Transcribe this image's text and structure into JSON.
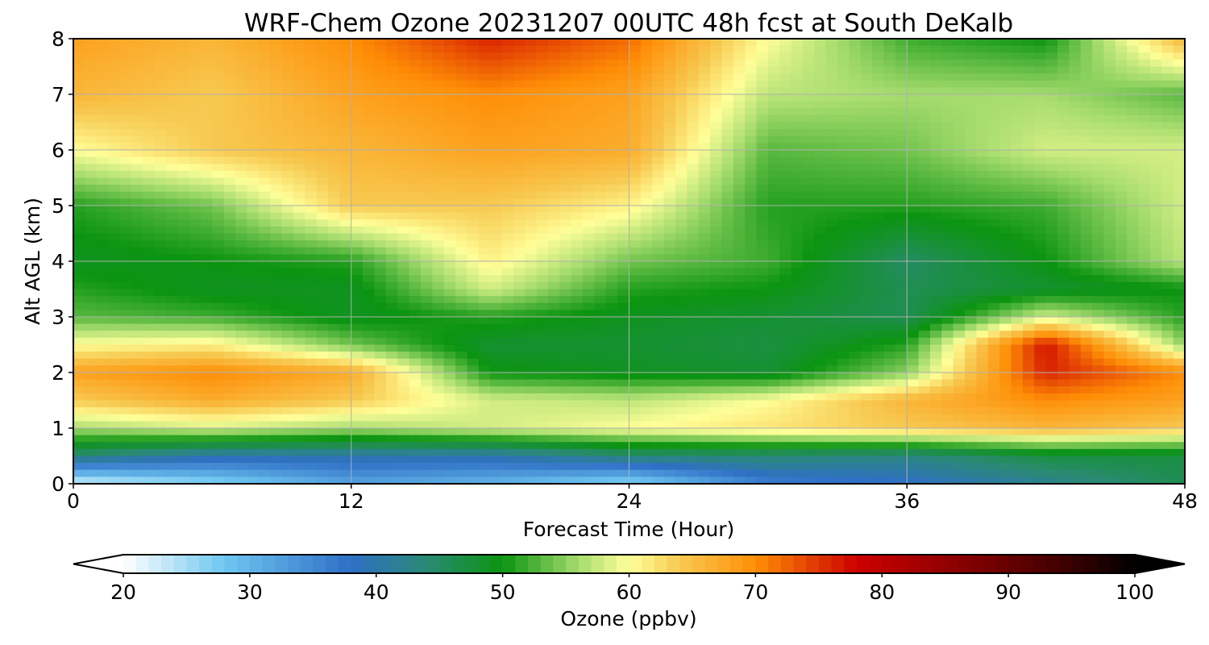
{
  "chart_data": {
    "type": "heatmap",
    "title": "WRF-Chem Ozone  20231207 00UTC 48h fcst at South DeKalb",
    "xlabel": "Forecast Time (Hour)",
    "ylabel": "Alt AGL (km)",
    "xlim": [
      0,
      48
    ],
    "ylim": [
      0,
      8
    ],
    "xticks": [
      0,
      12,
      24,
      36,
      48
    ],
    "yticks": [
      0,
      1,
      2,
      3,
      4,
      5,
      6,
      7,
      8
    ],
    "grid": true,
    "x": [
      0,
      6,
      12,
      18,
      24,
      30,
      36,
      42,
      48
    ],
    "y": [
      0,
      0.5,
      1,
      1.5,
      2,
      2.5,
      3,
      3.5,
      4,
      5,
      6,
      7,
      8
    ],
    "z_rows_by_altitude": [
      [
        22,
        26,
        32,
        30,
        26,
        36,
        38,
        42,
        46
      ],
      [
        44,
        40,
        40,
        40,
        44,
        44,
        43,
        47,
        47
      ],
      [
        56,
        58,
        56,
        58,
        60,
        62,
        64,
        66,
        64
      ],
      [
        64,
        67,
        64,
        58,
        57,
        60,
        66,
        70,
        68
      ],
      [
        68,
        70,
        67,
        50,
        49,
        48,
        55,
        76,
        70
      ],
      [
        60,
        61,
        54,
        48,
        48,
        47,
        51,
        77,
        55
      ],
      [
        53,
        52,
        49,
        51,
        49,
        48,
        46,
        58,
        51
      ],
      [
        51,
        49,
        49,
        58,
        51,
        50,
        46,
        48,
        50
      ],
      [
        49,
        50,
        51,
        61,
        54,
        52,
        45,
        50,
        57
      ],
      [
        51,
        54,
        64,
        64,
        61,
        51,
        51,
        52,
        58
      ],
      [
        60,
        64,
        66,
        68,
        67,
        53,
        54,
        58,
        58
      ],
      [
        66,
        64,
        68,
        70,
        68,
        57,
        56,
        56,
        53
      ],
      [
        68,
        66,
        70,
        76,
        72,
        60,
        52,
        50,
        66
      ]
    ],
    "colorbar": {
      "label": "Ozone  (ppbv)",
      "min": 20,
      "max": 100,
      "ticks": [
        20,
        30,
        40,
        50,
        60,
        70,
        80,
        90,
        100
      ],
      "extend": "both",
      "colormap": [
        [
          20,
          "#ffffff"
        ],
        [
          28,
          "#6ec6f0"
        ],
        [
          38,
          "#2f6fc6"
        ],
        [
          44,
          "#2a8a73"
        ],
        [
          50,
          "#0b9410"
        ],
        [
          56,
          "#a6dc6e"
        ],
        [
          60,
          "#ffff99"
        ],
        [
          64,
          "#f7c950"
        ],
        [
          70,
          "#ff8e06"
        ],
        [
          78,
          "#cc0000"
        ],
        [
          86,
          "#8b0000"
        ],
        [
          94,
          "#420000"
        ],
        [
          100,
          "#000000"
        ]
      ]
    }
  }
}
